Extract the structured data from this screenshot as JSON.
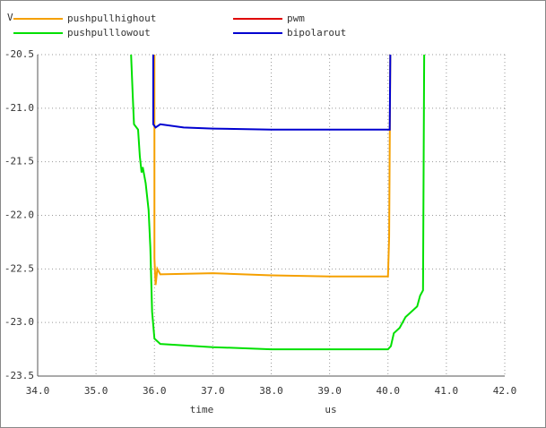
{
  "chart_data": {
    "type": "line",
    "ylabel": "V",
    "xlabel": "time",
    "xunit": "us",
    "xlim": [
      34,
      42
    ],
    "ylim": [
      -23.5,
      -20.5
    ],
    "grid": true,
    "xticks": [
      {
        "value": 34,
        "label": "34.0"
      },
      {
        "value": 35,
        "label": "35.0"
      },
      {
        "value": 36,
        "label": "36.0"
      },
      {
        "value": 37,
        "label": "37.0"
      },
      {
        "value": 38,
        "label": "38.0"
      },
      {
        "value": 39,
        "label": "39.0"
      },
      {
        "value": 40,
        "label": "40.0"
      },
      {
        "value": 41,
        "label": "41.0"
      },
      {
        "value": 42,
        "label": "42.0"
      }
    ],
    "yticks": [
      -20.5,
      {
        "value": -21,
        "label": "-21.0"
      },
      -21.5,
      {
        "value": -22,
        "label": "-22.0"
      },
      -22.5,
      {
        "value": -23,
        "label": "-23.0"
      },
      -23.5
    ],
    "series": [
      {
        "name": "pushpullhighout",
        "color": "#f5a000",
        "x": [
          36.0,
          36.0,
          36.02,
          36.05,
          36.1,
          37.0,
          38.0,
          39.0,
          40.0,
          40.02,
          40.04
        ],
        "values": [
          -20.5,
          -22.4,
          -22.65,
          -22.5,
          -22.55,
          -22.54,
          -22.56,
          -22.57,
          -22.57,
          -22.2,
          -20.5
        ]
      },
      {
        "name": "pwm",
        "color": "#e00000",
        "x": [],
        "values": []
      },
      {
        "name": "pushpulllowout",
        "color": "#00e000",
        "x": [
          35.6,
          35.63,
          35.65,
          35.72,
          35.75,
          35.78,
          35.8,
          35.85,
          35.9,
          35.93,
          35.96,
          36.0,
          36.1,
          37.0,
          38.0,
          39.0,
          40.0,
          40.05,
          40.1,
          40.2,
          40.3,
          40.5,
          40.55,
          40.6,
          40.62
        ],
        "values": [
          -20.5,
          -20.9,
          -21.15,
          -21.2,
          -21.45,
          -21.6,
          -21.55,
          -21.7,
          -21.95,
          -22.3,
          -22.9,
          -23.15,
          -23.2,
          -23.23,
          -23.25,
          -23.25,
          -23.25,
          -23.22,
          -23.1,
          -23.05,
          -22.95,
          -22.85,
          -22.75,
          -22.7,
          -20.5
        ]
      },
      {
        "name": "bipolarout",
        "color": "#0000d0",
        "x": [
          35.98,
          35.98,
          36.02,
          36.1,
          36.5,
          37.0,
          38.0,
          39.0,
          40.0,
          40.03,
          40.04
        ],
        "values": [
          -20.5,
          -21.15,
          -21.18,
          -21.15,
          -21.18,
          -21.19,
          -21.2,
          -21.2,
          -21.2,
          -21.2,
          -20.5
        ]
      }
    ]
  }
}
